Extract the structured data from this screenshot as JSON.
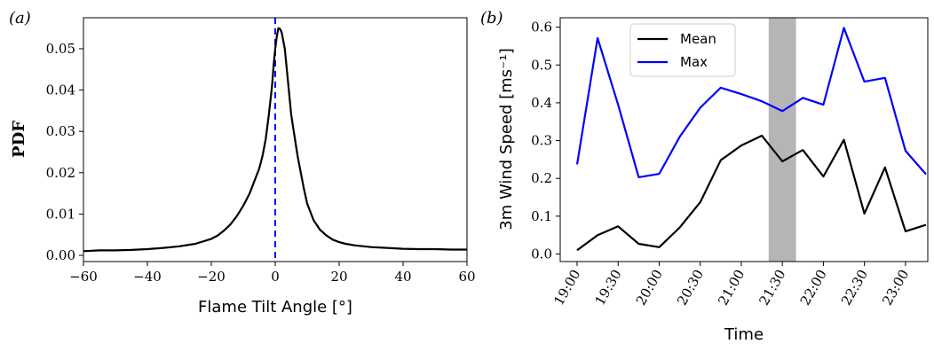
{
  "chart_data": [
    {
      "type": "line",
      "panel_label": "(a)",
      "xlabel": "Flame Tilt Angle [°]",
      "ylabel": "PDF",
      "xlim": [
        -60,
        60
      ],
      "ylim": [
        -0.0015,
        0.0575
      ],
      "xticks": [
        -60,
        -40,
        -20,
        0,
        20,
        40,
        60
      ],
      "xtick_labels": [
        "−60",
        "−40",
        "−20",
        "0",
        "20",
        "40",
        "60"
      ],
      "yticks": [
        0.0,
        0.01,
        0.02,
        0.03,
        0.04,
        0.05
      ],
      "ytick_labels": [
        "0.00",
        "0.01",
        "0.02",
        "0.03",
        "0.04",
        "0.05"
      ],
      "vline": {
        "x": 0,
        "color": "#0000ff",
        "style": "dashed"
      },
      "series": [
        {
          "color": "#000000",
          "x": [
            -60,
            -55,
            -50,
            -45,
            -40,
            -35,
            -30,
            -25,
            -22,
            -20,
            -18,
            -16,
            -14,
            -12,
            -10,
            -8,
            -6,
            -5,
            -4,
            -3,
            -2,
            -1,
            -0.5,
            0,
            0.5,
            1,
            1.5,
            2,
            3,
            4,
            5,
            6,
            7,
            8,
            9,
            10,
            12,
            14,
            16,
            18,
            20,
            22,
            25,
            30,
            35,
            40,
            45,
            50,
            55,
            60
          ],
          "y": [
            0.001,
            0.0012,
            0.0012,
            0.0013,
            0.0015,
            0.0018,
            0.0022,
            0.0028,
            0.0035,
            0.004,
            0.0048,
            0.006,
            0.0075,
            0.0095,
            0.012,
            0.015,
            0.019,
            0.021,
            0.024,
            0.028,
            0.034,
            0.041,
            0.046,
            0.05,
            0.053,
            0.055,
            0.0548,
            0.054,
            0.05,
            0.042,
            0.034,
            0.029,
            0.024,
            0.02,
            0.016,
            0.0125,
            0.0085,
            0.0062,
            0.0048,
            0.0038,
            0.0032,
            0.0028,
            0.0024,
            0.002,
            0.0018,
            0.0016,
            0.0015,
            0.0015,
            0.0014,
            0.0014
          ]
        }
      ]
    },
    {
      "type": "line",
      "panel_label": "(b)",
      "xlabel": "Time",
      "ylabel": "3m Wind Speed [ms⁻¹]",
      "ylim": [
        -0.02,
        0.625
      ],
      "yticks": [
        0.0,
        0.1,
        0.2,
        0.3,
        0.4,
        0.5,
        0.6
      ],
      "ytick_labels": [
        "0.0",
        "0.1",
        "0.2",
        "0.3",
        "0.4",
        "0.5",
        "0.6"
      ],
      "categories": [
        "19:00",
        "19:15",
        "19:30",
        "19:45",
        "20:00",
        "20:15",
        "20:30",
        "20:45",
        "21:00",
        "21:15",
        "21:30",
        "21:45",
        "22:00",
        "22:15",
        "22:30",
        "22:45",
        "23:00",
        "23:15"
      ],
      "xtick_labels": [
        "19:00",
        "19:30",
        "20:00",
        "20:30",
        "21:00",
        "21:30",
        "22:00",
        "22:30",
        "23:00"
      ],
      "shaded_region": {
        "from": "21:20",
        "to": "21:40",
        "color": "#b5b5b5"
      },
      "legend_position": "upper-center",
      "series": [
        {
          "name": "Mean",
          "color": "#000000",
          "values": [
            0.01,
            0.05,
            0.073,
            0.027,
            0.018,
            0.07,
            0.137,
            0.248,
            0.287,
            0.313,
            0.245,
            0.275,
            0.205,
            0.302,
            0.107,
            0.229,
            0.06,
            0.077
          ]
        },
        {
          "name": "Max",
          "color": "#0000ff",
          "values": [
            0.237,
            0.571,
            0.395,
            0.203,
            0.212,
            0.31,
            0.387,
            0.44,
            0.423,
            0.404,
            0.378,
            0.413,
            0.395,
            0.598,
            0.456,
            0.466,
            0.273,
            0.211
          ]
        }
      ]
    }
  ]
}
